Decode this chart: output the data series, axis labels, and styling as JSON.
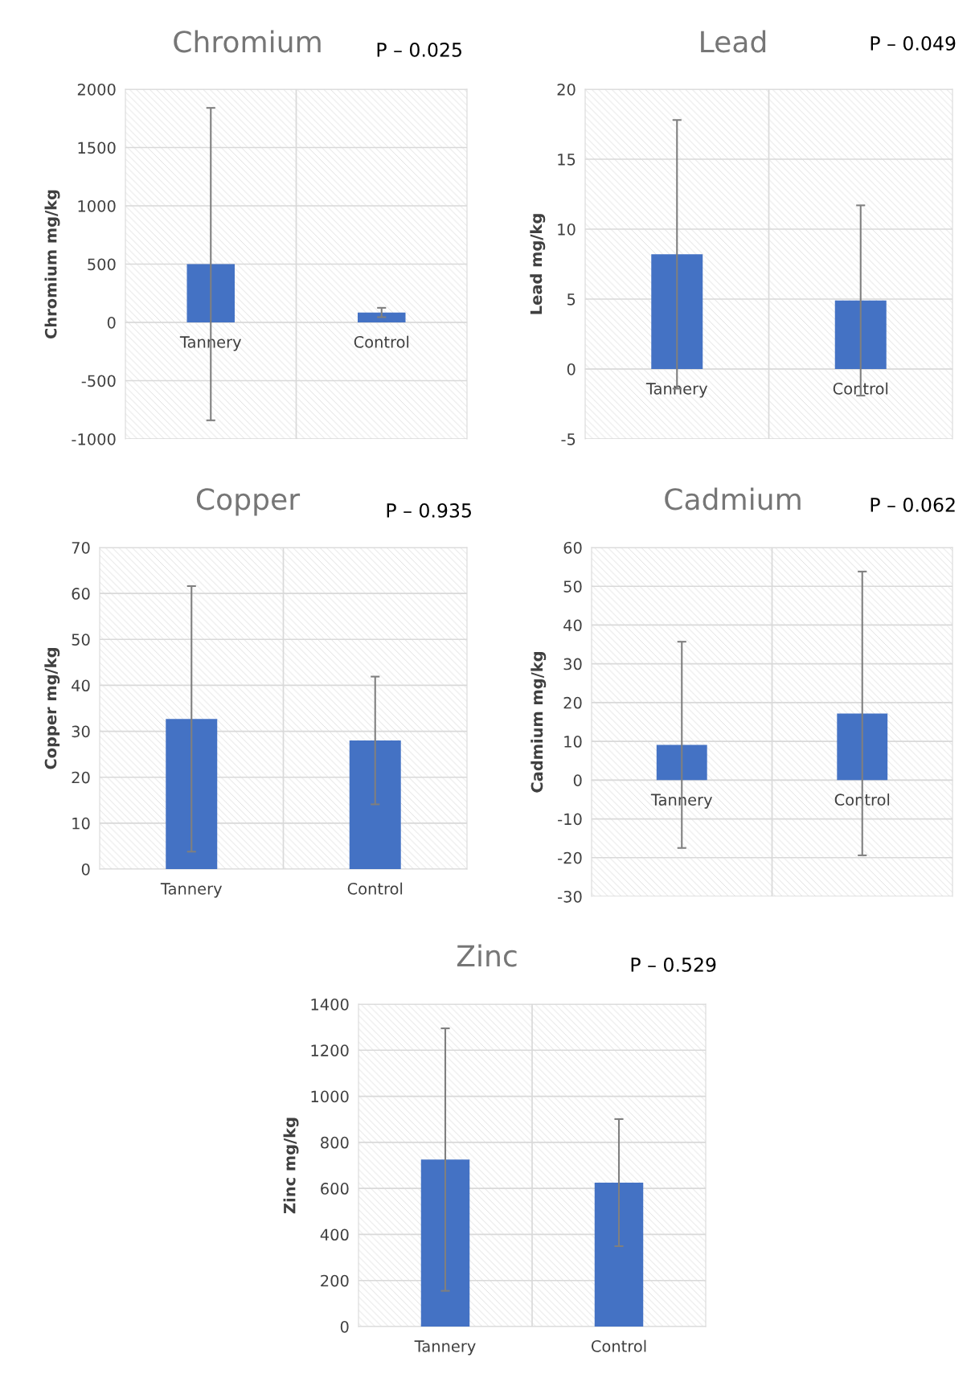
{
  "chart_data": [
    {
      "type": "bar",
      "title": "Chromium",
      "ylabel": "Chromium mg/kg",
      "annotations": [
        "P – 0.025"
      ],
      "categories": [
        "Tannery",
        "Control"
      ],
      "values": [
        500,
        85
      ],
      "errors": [
        1340,
        40
      ],
      "color": "#4472c4",
      "ylim": [
        -1000,
        2000
      ],
      "yticks": [
        -1000,
        -500,
        0,
        500,
        1000,
        1500,
        2000
      ],
      "grid": true
    },
    {
      "type": "bar",
      "title": "Lead",
      "ylabel": "Lead mg/kg",
      "annotations": [
        "P – 0.049"
      ],
      "categories": [
        "Tannery",
        "Control"
      ],
      "values": [
        8.2,
        4.9
      ],
      "errors": [
        9.6,
        6.8
      ],
      "color": "#4472c4",
      "ylim": [
        -5,
        20
      ],
      "yticks": [
        -5,
        0,
        5,
        10,
        15,
        20
      ],
      "grid": true
    },
    {
      "type": "bar",
      "title": "Copper",
      "ylabel": "Copper mg/kg",
      "annotations": [
        "P – 0.935"
      ],
      "categories": [
        "Tannery",
        "Control"
      ],
      "values": [
        32.7,
        28
      ],
      "errors": [
        28.9,
        13.9
      ],
      "color": "#4472c4",
      "ylim": [
        0,
        70
      ],
      "yticks": [
        0,
        10,
        20,
        30,
        40,
        50,
        60,
        70
      ],
      "grid": true
    },
    {
      "type": "bar",
      "title": "Cadmium",
      "ylabel": "Cadmium mg/kg",
      "annotations": [
        "P – 0.062"
      ],
      "categories": [
        "Tannery",
        "Control"
      ],
      "values": [
        9.1,
        17.2
      ],
      "errors": [
        26.6,
        36.6
      ],
      "color": "#4472c4",
      "ylim": [
        -30,
        60
      ],
      "yticks": [
        -30,
        -20,
        -10,
        0,
        10,
        20,
        30,
        40,
        50,
        60
      ],
      "grid": true
    },
    {
      "type": "bar",
      "title": "Zinc",
      "ylabel": "Zinc mg/kg",
      "annotations": [
        "P – 0.529"
      ],
      "categories": [
        "Tannery",
        "Control"
      ],
      "values": [
        725,
        625
      ],
      "errors": [
        570,
        276
      ],
      "color": "#4472c4",
      "ylim": [
        0,
        1400
      ],
      "yticks": [
        0,
        200,
        400,
        600,
        800,
        1000,
        1200,
        1400
      ],
      "grid": true
    }
  ]
}
